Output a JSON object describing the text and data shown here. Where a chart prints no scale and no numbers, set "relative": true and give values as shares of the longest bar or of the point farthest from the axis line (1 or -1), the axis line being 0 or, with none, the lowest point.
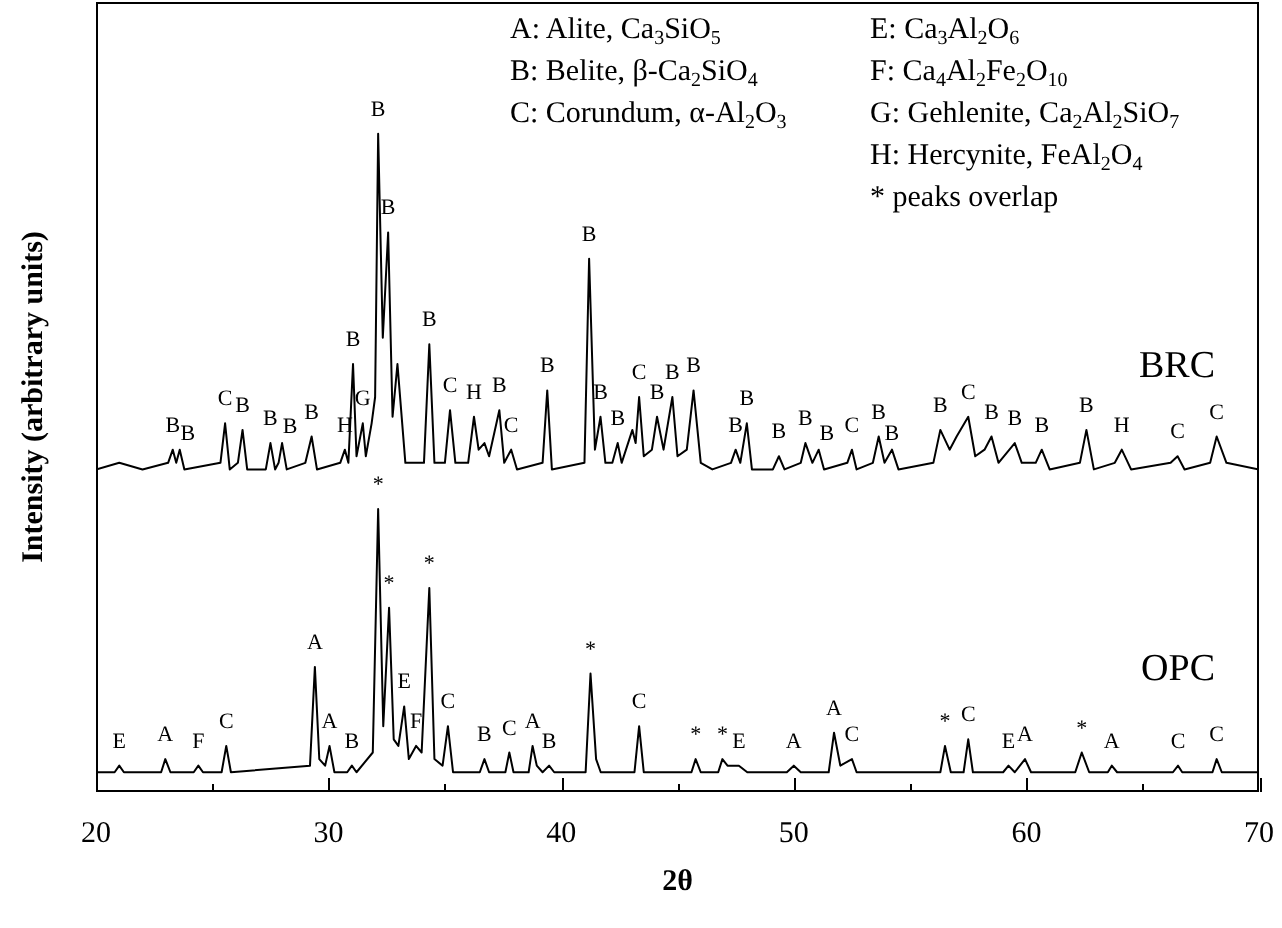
{
  "chart_data": {
    "type": "line",
    "relative": true,
    "xlabel": "2θ",
    "ylabel": "Intensity (arbitrary units)",
    "xlim": [
      20,
      70
    ],
    "xticks": [
      20,
      {
        "value": 25,
        "label": null
      },
      30,
      {
        "value": 35,
        "label": null
      },
      40,
      {
        "value": 45,
        "label": null
      },
      50,
      {
        "value": 55,
        "label": null
      },
      60,
      {
        "value": 65,
        "label": null
      },
      70
    ],
    "series": [
      {
        "name": "BRC",
        "color": "#000000",
        "x": [
          20,
          21,
          22,
          23.1,
          23.3,
          23.45,
          23.6,
          23.8,
          25.35,
          25.55,
          25.75,
          26.1,
          26.3,
          26.5,
          27.3,
          27.5,
          27.7,
          27.85,
          28.0,
          28.2,
          29.0,
          29.27,
          29.5,
          30.5,
          30.7,
          30.85,
          31.05,
          31.2,
          31.47,
          31.6,
          31.85,
          32.0,
          32.13,
          32.33,
          32.56,
          32.75,
          32.96,
          33.3,
          34.1,
          34.33,
          34.55,
          35.0,
          35.22,
          35.45,
          36.0,
          36.25,
          36.45,
          36.7,
          36.9,
          37.34,
          37.55,
          37.85,
          38.1,
          39.2,
          39.4,
          39.6,
          41.0,
          41.2,
          41.45,
          41.69,
          41.9,
          42.2,
          42.43,
          42.6,
          43.06,
          43.2,
          43.35,
          43.55,
          43.9,
          44.12,
          44.4,
          44.78,
          45.0,
          45.4,
          45.69,
          46.0,
          46.5,
          47.3,
          47.5,
          47.7,
          47.98,
          48.2,
          49.1,
          49.36,
          49.6,
          50.3,
          50.5,
          50.8,
          51.07,
          51.3,
          52.3,
          52.5,
          52.7,
          53.4,
          53.65,
          53.9,
          54.22,
          54.5,
          56.0,
          56.3,
          56.7,
          57.0,
          57.5,
          57.8,
          58.2,
          58.5,
          58.8,
          59.5,
          59.8,
          60.4,
          60.66,
          61.0,
          62.3,
          62.58,
          62.9,
          63.8,
          64.1,
          64.5,
          66.2,
          66.5,
          66.8,
          67.9,
          68.18,
          68.6,
          70
        ],
        "values": [
          0.49,
          0.5,
          0.49,
          0.5,
          0.52,
          0.5,
          0.52,
          0.49,
          0.5,
          0.56,
          0.49,
          0.5,
          0.55,
          0.49,
          0.49,
          0.53,
          0.49,
          0.5,
          0.53,
          0.49,
          0.5,
          0.54,
          0.49,
          0.5,
          0.52,
          0.5,
          0.65,
          0.51,
          0.56,
          0.51,
          0.56,
          0.6,
          1,
          0.69,
          0.85,
          0.57,
          0.65,
          0.5,
          0.5,
          0.68,
          0.5,
          0.5,
          0.58,
          0.5,
          0.5,
          0.57,
          0.52,
          0.53,
          0.51,
          0.58,
          0.5,
          0.52,
          0.49,
          0.5,
          0.61,
          0.49,
          0.5,
          0.81,
          0.52,
          0.57,
          0.5,
          0.5,
          0.53,
          0.5,
          0.55,
          0.53,
          0.6,
          0.51,
          0.52,
          0.57,
          0.52,
          0.6,
          0.51,
          0.52,
          0.61,
          0.5,
          0.49,
          0.5,
          0.52,
          0.5,
          0.56,
          0.49,
          0.49,
          0.51,
          0.49,
          0.5,
          0.53,
          0.5,
          0.52,
          0.49,
          0.5,
          0.52,
          0.49,
          0.5,
          0.54,
          0.5,
          0.52,
          0.49,
          0.5,
          0.55,
          0.52,
          0.54,
          0.57,
          0.51,
          0.52,
          0.54,
          0.5,
          0.53,
          0.5,
          0.5,
          0.52,
          0.49,
          0.5,
          0.55,
          0.49,
          0.5,
          0.52,
          0.49,
          0.5,
          0.51,
          0.49,
          0.5,
          0.54,
          0.5,
          0.49
        ]
      },
      {
        "name": "OPC",
        "color": "#000000",
        "x": [
          20,
          20.8,
          21.0,
          21.2,
          22.8,
          22.98,
          23.2,
          24.2,
          24.4,
          24.6,
          25.4,
          25.6,
          25.8,
          29.2,
          29.41,
          29.6,
          29.85,
          30.04,
          30.25,
          30.8,
          31.0,
          31.2,
          31.9,
          32.13,
          32.35,
          32.6,
          32.8,
          33.0,
          33.25,
          33.45,
          33.76,
          34.0,
          34.33,
          34.55,
          34.9,
          35.13,
          35.35,
          36.5,
          36.7,
          36.9,
          37.6,
          37.77,
          37.95,
          38.6,
          38.77,
          38.95,
          39.2,
          39.48,
          39.7,
          41.05,
          41.26,
          41.5,
          41.7,
          43.15,
          43.35,
          43.55,
          45.6,
          45.78,
          46.0,
          46.75,
          46.93,
          47.15,
          47.64,
          48.0,
          49.7,
          50.0,
          50.3,
          51.5,
          51.73,
          52.0,
          52.5,
          52.7,
          56.3,
          56.5,
          56.75,
          57.3,
          57.5,
          57.7,
          59.0,
          59.23,
          59.5,
          59.94,
          60.2,
          62.1,
          62.38,
          62.7,
          63.5,
          63.67,
          63.9,
          66.3,
          66.52,
          66.7,
          68.0,
          68.18,
          68.4,
          70
        ],
        "values": [
          0.03,
          0.03,
          0.04,
          0.03,
          0.03,
          0.05,
          0.03,
          0.03,
          0.04,
          0.03,
          0.03,
          0.07,
          0.03,
          0.04,
          0.19,
          0.05,
          0.04,
          0.07,
          0.03,
          0.03,
          0.04,
          0.03,
          0.06,
          0.43,
          0.1,
          0.28,
          0.08,
          0.07,
          0.13,
          0.05,
          0.07,
          0.06,
          0.31,
          0.05,
          0.04,
          0.1,
          0.03,
          0.03,
          0.05,
          0.03,
          0.03,
          0.06,
          0.03,
          0.03,
          0.07,
          0.04,
          0.03,
          0.04,
          0.03,
          0.03,
          0.18,
          0.05,
          0.03,
          0.03,
          0.1,
          0.03,
          0.03,
          0.05,
          0.03,
          0.03,
          0.05,
          0.04,
          0.04,
          0.03,
          0.03,
          0.04,
          0.03,
          0.03,
          0.09,
          0.04,
          0.05,
          0.03,
          0.03,
          0.07,
          0.03,
          0.03,
          0.08,
          0.03,
          0.03,
          0.04,
          0.03,
          0.05,
          0.03,
          0.03,
          0.06,
          0.03,
          0.03,
          0.04,
          0.03,
          0.03,
          0.04,
          0.03,
          0.03,
          0.05,
          0.03,
          0.03
        ]
      }
    ],
    "annotations": [
      "A: Alite, Ca$_{3}$SiO$_{5}$",
      "B: Belite, β-Ca$_{2}$SiO$_{4}$",
      "C: Corundum, α-Al$_{2}$O$_{3}$",
      "E: Ca$_{3}$Al$_{2}$O$_{6}$",
      "F: Ca$_{4}$Al$_{2}$Fe$_{2}$O$_{10}$",
      "G: Gehlenite, Ca$_{2}$Al$_{2}$SiO$_{7}$",
      "H: Hercynite, FeAl$_{2}$O$_{4}$",
      "* peaks overlap",
      {
        "text": "B",
        "x": 23.3,
        "y": 0.52
      },
      {
        "text": "B",
        "x": 23.6,
        "y": 0.52
      },
      {
        "text": "C",
        "x": 25.55,
        "y": 0.56
      },
      {
        "text": "B",
        "x": 26.3,
        "y": 0.55
      },
      {
        "text": "B",
        "x": 27.5,
        "y": 0.53
      },
      {
        "text": "B",
        "x": 28.0,
        "y": 0.53
      },
      {
        "text": "B",
        "x": 29.27,
        "y": 0.54
      },
      {
        "text": "H",
        "x": 30.7,
        "y": 0.52
      },
      {
        "text": "B",
        "x": 31.05,
        "y": 0.65
      },
      {
        "text": "G",
        "x": 31.47,
        "y": 0.56
      },
      {
        "text": "B",
        "x": 32.13,
        "y": 1
      },
      {
        "text": "B",
        "x": 32.56,
        "y": 0.85
      },
      {
        "text": "B",
        "x": 34.33,
        "y": 0.68
      },
      {
        "text": "C",
        "x": 35.22,
        "y": 0.58
      },
      {
        "text": "H",
        "x": 36.25,
        "y": 0.57
      },
      {
        "text": "B",
        "x": 37.34,
        "y": 0.58
      },
      {
        "text": "C",
        "x": 37.85,
        "y": 0.52
      },
      {
        "text": "B",
        "x": 39.4,
        "y": 0.61
      },
      {
        "text": "B",
        "x": 41.2,
        "y": 0.81
      },
      {
        "text": "B",
        "x": 41.69,
        "y": 0.57
      },
      {
        "text": "B",
        "x": 42.43,
        "y": 0.53
      },
      {
        "text": "C",
        "x": 43.35,
        "y": 0.6
      },
      {
        "text": "B",
        "x": 44.12,
        "y": 0.57
      },
      {
        "text": "B",
        "x": 44.78,
        "y": 0.6
      },
      {
        "text": "B",
        "x": 45.69,
        "y": 0.61
      },
      {
        "text": "B",
        "x": 47.5,
        "y": 0.52
      },
      {
        "text": "B",
        "x": 47.98,
        "y": 0.56
      },
      {
        "text": "B",
        "x": 49.36,
        "y": 0.51
      },
      {
        "text": "B",
        "x": 50.5,
        "y": 0.53
      },
      {
        "text": "B",
        "x": 51.07,
        "y": 0.52
      },
      {
        "text": "C",
        "x": 52.5,
        "y": 0.52
      },
      {
        "text": "B",
        "x": 53.65,
        "y": 0.54
      },
      {
        "text": "B",
        "x": 54.22,
        "y": 0.52
      },
      {
        "text": "B",
        "x": 56.3,
        "y": 0.55
      },
      {
        "text": "C",
        "x": 57.5,
        "y": 0.57
      },
      {
        "text": "B",
        "x": 58.5,
        "y": 0.54
      },
      {
        "text": "B",
        "x": 59.5,
        "y": 0.53
      },
      {
        "text": "B",
        "x": 60.66,
        "y": 0.52
      },
      {
        "text": "B",
        "x": 62.58,
        "y": 0.55
      },
      {
        "text": "H",
        "x": 64.1,
        "y": 0.52
      },
      {
        "text": "C",
        "x": 66.5,
        "y": 0.51
      },
      {
        "text": "C",
        "x": 68.18,
        "y": 0.54
      },
      {
        "text": "E",
        "x": 21.0,
        "y": 0.04
      },
      {
        "text": "A",
        "x": 22.98,
        "y": 0.05
      },
      {
        "text": "F",
        "x": 24.4,
        "y": 0.04
      },
      {
        "text": "C",
        "x": 25.6,
        "y": 0.07
      },
      {
        "text": "A",
        "x": 29.41,
        "y": 0.19
      },
      {
        "text": "A",
        "x": 30.04,
        "y": 0.07
      },
      {
        "text": "B",
        "x": 31.0,
        "y": 0.04
      },
      {
        "text": "*",
        "x": 32.13,
        "y": 0.43
      },
      {
        "text": "*",
        "x": 32.6,
        "y": 0.28
      },
      {
        "text": "E",
        "x": 33.25,
        "y": 0.13
      },
      {
        "text": "F",
        "x": 33.76,
        "y": 0.07
      },
      {
        "text": "*",
        "x": 34.33,
        "y": 0.31
      },
      {
        "text": "C",
        "x": 35.13,
        "y": 0.1
      },
      {
        "text": "B",
        "x": 36.7,
        "y": 0.05
      },
      {
        "text": "C",
        "x": 37.77,
        "y": 0.06
      },
      {
        "text": "A",
        "x": 38.77,
        "y": 0.07
      },
      {
        "text": "B",
        "x": 39.48,
        "y": 0.04
      },
      {
        "text": "*",
        "x": 41.26,
        "y": 0.18
      },
      {
        "text": "C",
        "x": 43.35,
        "y": 0.1
      },
      {
        "text": "*",
        "x": 45.78,
        "y": 0.05
      },
      {
        "text": "*",
        "x": 46.93,
        "y": 0.05
      },
      {
        "text": "E",
        "x": 47.64,
        "y": 0.04
      },
      {
        "text": "A",
        "x": 50.0,
        "y": 0.04
      },
      {
        "text": "A",
        "x": 51.73,
        "y": 0.09
      },
      {
        "text": "C",
        "x": 52.5,
        "y": 0.05
      },
      {
        "text": "*",
        "x": 56.5,
        "y": 0.07
      },
      {
        "text": "C",
        "x": 57.5,
        "y": 0.08
      },
      {
        "text": "E",
        "x": 59.23,
        "y": 0.04
      },
      {
        "text": "A",
        "x": 59.94,
        "y": 0.05
      },
      {
        "text": "*",
        "x": 62.38,
        "y": 0.06
      },
      {
        "text": "A",
        "x": 63.67,
        "y": 0.04
      },
      {
        "text": "C",
        "x": 66.52,
        "y": 0.04
      },
      {
        "text": "C",
        "x": 68.18,
        "y": 0.05
      }
    ]
  }
}
